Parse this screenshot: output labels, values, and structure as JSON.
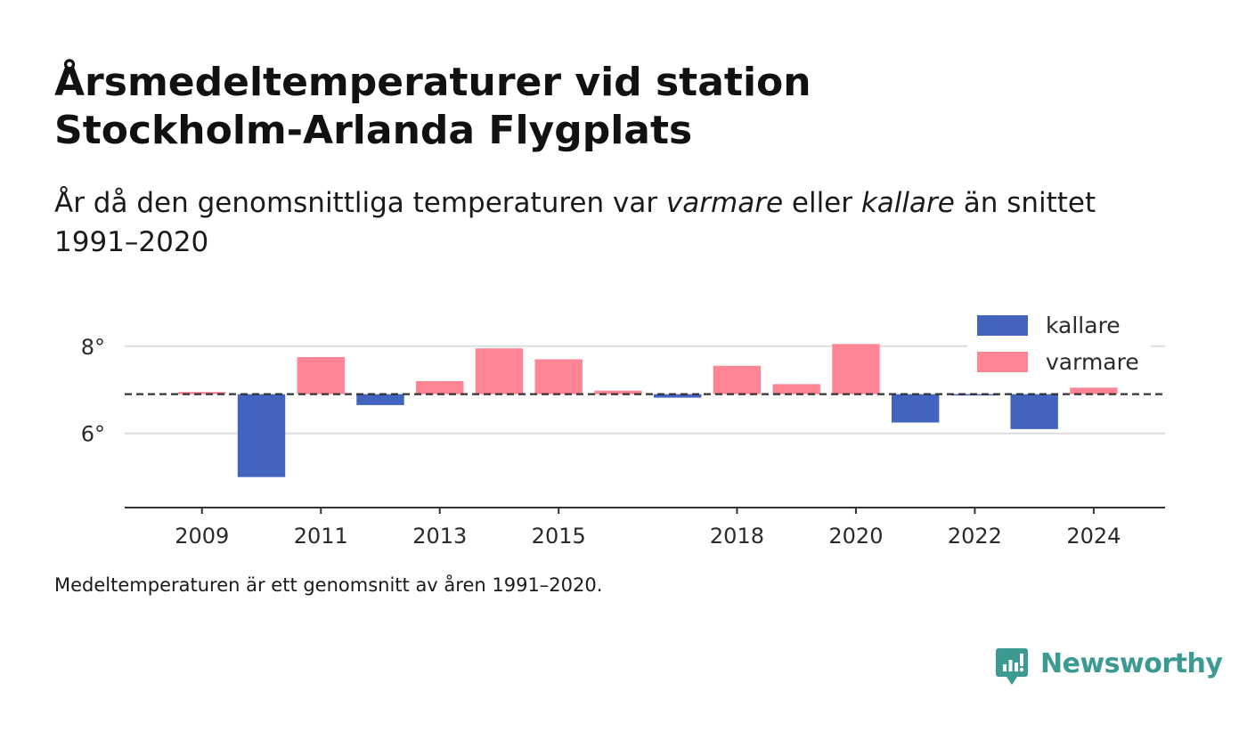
{
  "title_lines": [
    "Årsmedeltemperaturer vid station",
    "Stockholm-Arlanda Flygplats"
  ],
  "subtitle": {
    "part1": "År då den genomsnittliga temperaturen var ",
    "em1": "varmare",
    "part2": " eller ",
    "em2": "kallare",
    "part3": " än snittet 1991–2020"
  },
  "footnote": "Medeltemperaturen är ett genomsnitt av åren 1991–2020.",
  "brand": {
    "name": "Newsworthy",
    "icon": "newsworthy-logo-icon",
    "color": "#3c9a92"
  },
  "colors": {
    "kallare": "#4263be",
    "varmare": "#ff8494",
    "baseline": "#333333",
    "grid": "#dddddd",
    "axis": "#333333"
  },
  "chart_data": {
    "type": "bar",
    "baseline": 6.9,
    "baseline_style": "dashed",
    "x": [
      2009,
      2010,
      2011,
      2012,
      2013,
      2014,
      2015,
      2016,
      2017,
      2018,
      2019,
      2020,
      2021,
      2022,
      2023,
      2024
    ],
    "values": [
      6.95,
      5.0,
      7.75,
      6.65,
      7.2,
      7.95,
      7.7,
      6.98,
      6.82,
      7.55,
      7.13,
      8.05,
      6.25,
      6.87,
      6.1,
      7.05
    ],
    "x_ticks": [
      2009,
      2011,
      2013,
      2015,
      2018,
      2020,
      2022,
      2024
    ],
    "x_tick_labels": [
      "2009",
      "2011",
      "2013",
      "2015",
      "2018",
      "2020",
      "2022",
      "2024"
    ],
    "y_ticks": [
      6,
      8
    ],
    "y_tick_labels": [
      "6°",
      "8°"
    ],
    "ylim": [
      4.3,
      9.2
    ],
    "xlim": [
      2007.7,
      2025.2
    ],
    "series": [
      {
        "name": "kallare",
        "rule": "below baseline"
      },
      {
        "name": "varmare",
        "rule": "above baseline"
      }
    ],
    "grid": true,
    "legend_position": "top-right"
  }
}
